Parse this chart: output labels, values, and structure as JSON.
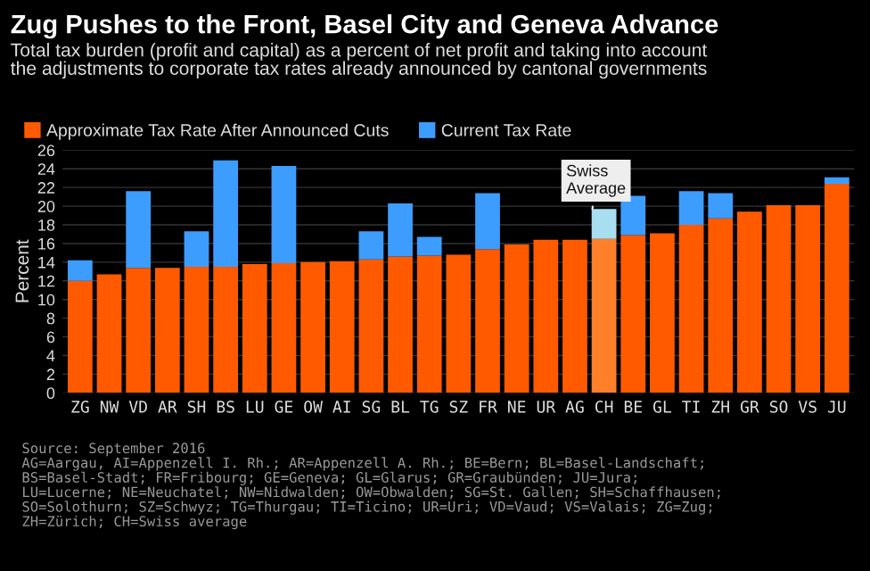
{
  "chart_data": {
    "type": "bar",
    "stacked": true,
    "title": "Zug Pushes to the Front, Basel City and Geneva Advance",
    "subtitle": "Total tax burden (profit and capital) as a percent of net profit and taking into account\nthe adjustments to corporate tax rates already announced by cantonal governments",
    "ylabel": "Percent",
    "categories": [
      "ZG",
      "NW",
      "VD",
      "AR",
      "SH",
      "BS",
      "LU",
      "GE",
      "OW",
      "AI",
      "SG",
      "BL",
      "TG",
      "SZ",
      "FR",
      "NE",
      "UR",
      "AG",
      "CH",
      "BE",
      "GL",
      "TI",
      "ZH",
      "GR",
      "SO",
      "VS",
      "JU"
    ],
    "series": [
      {
        "name": "Approximate Tax Rate After Announced Cuts",
        "color": "#ff5a00",
        "colors": [
          "#ff5a00",
          "#ff5a00",
          "#ff5a00",
          "#ff5a00",
          "#ff5a00",
          "#ff5a00",
          "#ff5a00",
          "#ff5a00",
          "#ff5a00",
          "#ff5a00",
          "#ff5a00",
          "#ff5a00",
          "#ff5a00",
          "#ff5a00",
          "#ff5a00",
          "#ff5a00",
          "#ff5a00",
          "#ff5a00",
          "#ff7f2a",
          "#ff5a00",
          "#ff5a00",
          "#ff5a00",
          "#ff5a00",
          "#ff5a00",
          "#ff5a00",
          "#ff5a00",
          "#ff5a00"
        ],
        "values": [
          12.0,
          12.7,
          13.4,
          13.4,
          13.5,
          13.5,
          13.8,
          13.9,
          14.0,
          14.1,
          14.3,
          14.6,
          14.7,
          14.8,
          15.4,
          15.9,
          16.4,
          16.4,
          16.5,
          16.9,
          17.1,
          18.0,
          18.7,
          19.4,
          20.1,
          20.1,
          22.4
        ]
      },
      {
        "name": "Current Tax Rate",
        "color": "#3d9dff",
        "colors": [
          "#3d9dff",
          "#3d9dff",
          "#3d9dff",
          "#3d9dff",
          "#3d9dff",
          "#3d9dff",
          "#3d9dff",
          "#3d9dff",
          "#3d9dff",
          "#3d9dff",
          "#3d9dff",
          "#3d9dff",
          "#3d9dff",
          "#3d9dff",
          "#3d9dff",
          "#3d9dff",
          "#3d9dff",
          "#3d9dff",
          "#a8dff0",
          "#3d9dff",
          "#3d9dff",
          "#3d9dff",
          "#3d9dff",
          "#3d9dff",
          "#3d9dff",
          "#3d9dff",
          "#3d9dff"
        ],
        "values": [
          2.2,
          null,
          8.2,
          null,
          3.8,
          11.4,
          null,
          10.4,
          null,
          null,
          3.0,
          5.7,
          2.0,
          null,
          6.0,
          null,
          null,
          null,
          3.2,
          4.2,
          null,
          3.6,
          2.7,
          null,
          null,
          null,
          0.7
        ]
      }
    ],
    "ylim": [
      0,
      26
    ],
    "yticks": [
      0,
      2,
      4,
      6,
      8,
      10,
      12,
      14,
      16,
      18,
      20,
      22,
      24,
      26
    ],
    "grid": "y",
    "legend": "top left",
    "annotations": [
      {
        "text": "Swiss\nAverage",
        "x": "CH",
        "y": 19.7
      },
      "Source: September 2016\nAG=Aargau, AI=Appenzell I. Rh.; AR=Appenzell A. Rh.; BE=Bern; BL=Basel-Landschaft;\nBS=Basel-Stadt; FR=Fribourg; GE=Geneva; GL=Glarus; GR=Graubünden; JU=Jura;\nLU=Lucerne; NE=Neuchatel; NW=Nidwalden; OW=Obwalden; SG=St. Gallen; SH=Schaffhausen;\nSO=Solothurn; SZ=Schwyz; TG=Thurgau; TI=Ticino; UR=Uri; VD=Vaud; VS=Valais; ZG=Zug;\nZH=Zürich; CH=Swiss average"
    ]
  }
}
